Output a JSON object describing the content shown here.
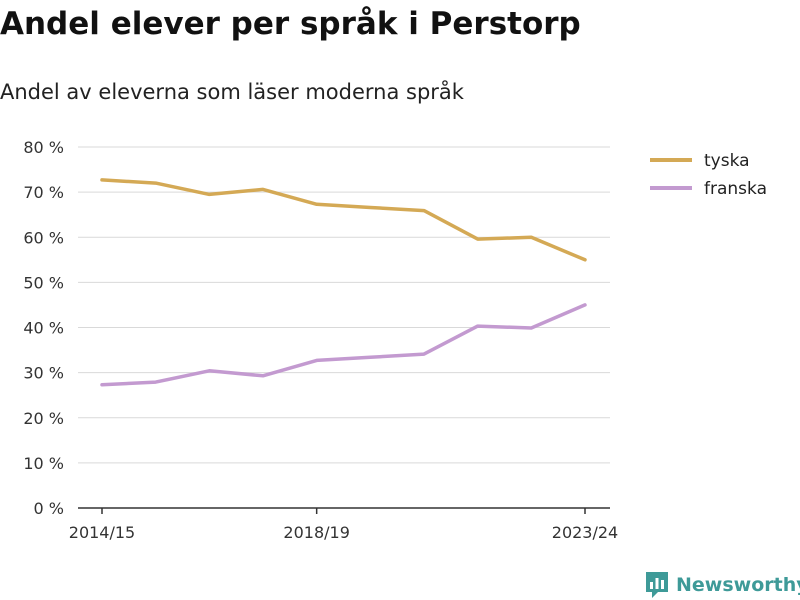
{
  "title": "Andel elever per språk i Perstorp",
  "subtitle": "Andel av eleverna som läser moderna språk",
  "brand": {
    "name": "Newsworthy",
    "color": "#3e9a98",
    "icon": "newsworthy-logo-icon"
  },
  "chart_data": {
    "type": "line",
    "x": [
      "2014/15",
      "2015/16",
      "2016/17",
      "2017/18",
      "2018/19",
      "2019/20",
      "2020/21",
      "2021/22",
      "2022/23",
      "2023/24"
    ],
    "x_tick_labels": [
      "2014/15",
      "2018/19",
      "2023/24"
    ],
    "y_ticks": [
      0,
      10,
      20,
      30,
      40,
      50,
      60,
      70,
      80
    ],
    "y_tick_labels": [
      "0 %",
      "10 %",
      "20 %",
      "30 %",
      "40 %",
      "50 %",
      "60 %",
      "70 %",
      "80 %"
    ],
    "ylim": [
      0,
      80
    ],
    "grid": true,
    "legend_position": "top-right",
    "series": [
      {
        "name": "tyska",
        "color": "#d4a955",
        "values": [
          72.7,
          72.0,
          69.5,
          70.6,
          67.3,
          66.6,
          65.9,
          59.6,
          60.0,
          55.0
        ]
      },
      {
        "name": "franska",
        "color": "#c39ad0",
        "values": [
          27.3,
          27.9,
          30.4,
          29.3,
          32.7,
          33.4,
          34.1,
          40.3,
          39.9,
          45.0
        ]
      }
    ]
  }
}
